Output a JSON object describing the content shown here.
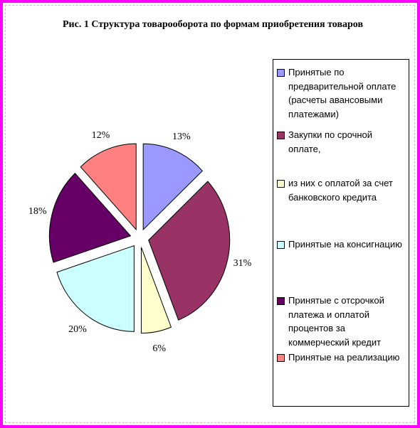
{
  "chart_data": {
    "type": "pie",
    "title": "Рис. 1 Структура товарооборота по формам приобретения товаров",
    "series": [
      {
        "name": "Принятые по предварительной оплате (расчеты авансовыми платежами)",
        "value": 13,
        "label": "13%",
        "color": "#9999ff"
      },
      {
        "name": "Закупки по срочной оплате,",
        "value": 31,
        "label": "31%",
        "color": "#993366"
      },
      {
        "name": "из них с оплатой за счет банковского кредита",
        "value": 6,
        "label": "6%",
        "color": "#ffffcc"
      },
      {
        "name": "Принятые на консигнацию",
        "value": 20,
        "label": "20%",
        "color": "#ccffff"
      },
      {
        "name": "Принятые с отсрочкой платежа и оплатой процентов за коммерческий кредит",
        "value": 18,
        "label": "18%",
        "color": "#660066"
      },
      {
        "name": "Принятые на реализацию",
        "value": 12,
        "label": "12%",
        "color": "#ff8080"
      }
    ],
    "legend_position": "right",
    "exploded": true
  },
  "colors": {
    "background_frame": "#ff00ff",
    "plot_area": "#ffffff"
  }
}
